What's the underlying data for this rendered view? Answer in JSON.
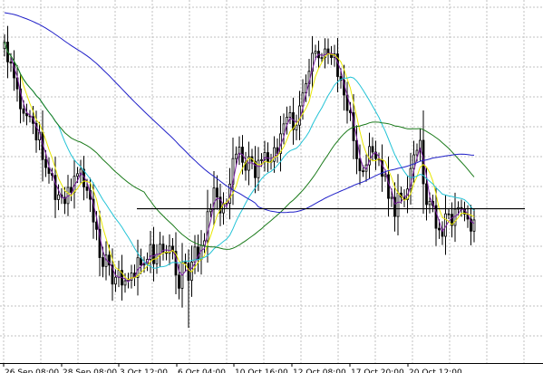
{
  "chart_data": {
    "type": "candlestick",
    "title": "",
    "xlabel": "",
    "ylabel": "",
    "grid": true,
    "legend": "none",
    "x_tick_labels": [
      "26 Sep 08:00",
      "28 Sep 08:00",
      "3 Oct 12:00",
      "6 Oct 04:00",
      "10 Oct 16:00",
      "12 Oct 08:00",
      "17 Oct 20:00",
      "20 Oct 12:00"
    ],
    "ylim": [
      0,
      400
    ],
    "horizontal_line": {
      "value": 170.0,
      "color": "#000000"
    },
    "candles": {
      "close": [
        353.6,
        331.8,
        330.5,
        314.2,
        302.1,
        280.1,
        275.2,
        272.4,
        271.5,
        264.0,
        245.8,
        254.3,
        224.2,
        215.4,
        208.9,
        206.8,
        180.1,
        185.3,
        182.6,
        175.7,
        193.5,
        188.1,
        205.8,
        208.6,
        213.5,
        194.0,
        190.2,
        180.4,
        155.4,
        147.3,
        116.2,
        106.4,
        118.9,
        107.9,
        87.0,
        94.5,
        102.1,
        85.9,
        90.6,
        91.2,
        99.2,
        94.3,
        116.0,
        108.0,
        109.0,
        114.2,
        130.5,
        109.4,
        119.8,
        131.0,
        122.3,
        120.9,
        128.8,
        123.1,
        96.9,
        82.4,
        111.0,
        109.9,
        91.1,
        111.3,
        127.8,
        114.3,
        129.8,
        134.7,
        166.8,
        169.4,
        192.8,
        182.8,
        165.4,
        175.2,
        176.0,
        197.2,
        225.3,
        230.2,
        237.9,
        221.2,
        212.4,
        227.4,
        222.2,
        204.2,
        223.4,
        224.0,
        231.9,
        221.5,
        222.2,
        237.3,
        230.9,
        252.5,
        263.5,
        270.9,
        275.9,
        257.0,
        262.1,
        283.3,
        297.6,
        307.8,
        321.4,
        341.3,
        343.6,
        336.3,
        336.5,
        346.1,
        341.0,
        336.6,
        340.6,
        315.7,
        311.5,
        295.3,
        278.3,
        275.8,
        245.0,
        225.1,
        211.8,
        211.3,
        218.3,
        238.6,
        232.4,
        225.2,
        223.8,
        205.7,
        207.5,
        181.4,
        182.6,
        161.5,
        187.3,
        182.9,
        180.0,
        191.8,
        214.3,
        229.4,
        234.4,
        245.4,
        197.5,
        174.6,
        178.2,
        173.5,
        148.5,
        146.7,
        139.6,
        164.4,
        163.9,
        151.6,
        169.6,
        171.3,
        169.9,
        164.1,
        158.6,
        145.3,
        157.7
      ],
      "open": [
        346.4,
        353.6,
        331.8,
        330.5,
        314.2,
        302.1,
        280.1,
        275.2,
        272.4,
        271.5,
        264.0,
        245.8,
        254.3,
        224.2,
        215.4,
        208.9,
        206.8,
        180.1,
        185.3,
        182.6,
        175.7,
        193.5,
        188.1,
        205.8,
        208.6,
        213.5,
        194.0,
        190.2,
        180.4,
        155.4,
        147.3,
        116.2,
        106.4,
        118.9,
        107.9,
        87.0,
        94.5,
        102.1,
        85.9,
        90.6,
        91.2,
        99.2,
        94.3,
        116.0,
        108.0,
        109.0,
        114.2,
        130.5,
        109.4,
        119.8,
        131.0,
        122.3,
        120.9,
        128.8,
        123.1,
        96.9,
        82.4,
        111.0,
        109.9,
        91.1,
        111.3,
        127.8,
        114.3,
        129.8,
        134.7,
        166.8,
        169.4,
        192.8,
        182.8,
        165.4,
        175.2,
        176.0,
        197.2,
        225.3,
        230.2,
        237.9,
        221.2,
        212.4,
        227.4,
        222.2,
        204.2,
        223.4,
        224.0,
        231.9,
        221.5,
        222.2,
        237.3,
        230.9,
        252.5,
        263.5,
        270.9,
        275.9,
        257.0,
        262.1,
        283.3,
        297.6,
        307.8,
        321.4,
        341.3,
        343.6,
        336.3,
        336.5,
        346.1,
        341.0,
        336.6,
        340.6,
        315.7,
        311.5,
        295.3,
        278.3,
        275.8,
        245.0,
        225.1,
        211.8,
        211.3,
        218.3,
        238.6,
        232.4,
        225.2,
        223.8,
        205.7,
        207.5,
        181.4,
        182.6,
        161.5,
        187.3,
        182.9,
        180.0,
        191.8,
        214.3,
        229.4,
        234.4,
        245.4,
        197.5,
        174.6,
        178.2,
        173.5,
        148.5,
        146.7,
        139.6,
        164.4,
        163.9,
        151.6,
        169.6,
        171.3,
        169.9,
        164.1,
        158.6,
        145.3
      ]
    },
    "lines": [
      {
        "color": "#7b1fa2",
        "period": 3
      },
      {
        "color": "#e8e800",
        "period": 6
      },
      {
        "color": "#22c3d6",
        "period": 18
      },
      {
        "color": "#1a7a1a",
        "period": 45
      },
      {
        "color": "#2020c8",
        "period": 80,
        "start": 386
      }
    ]
  }
}
